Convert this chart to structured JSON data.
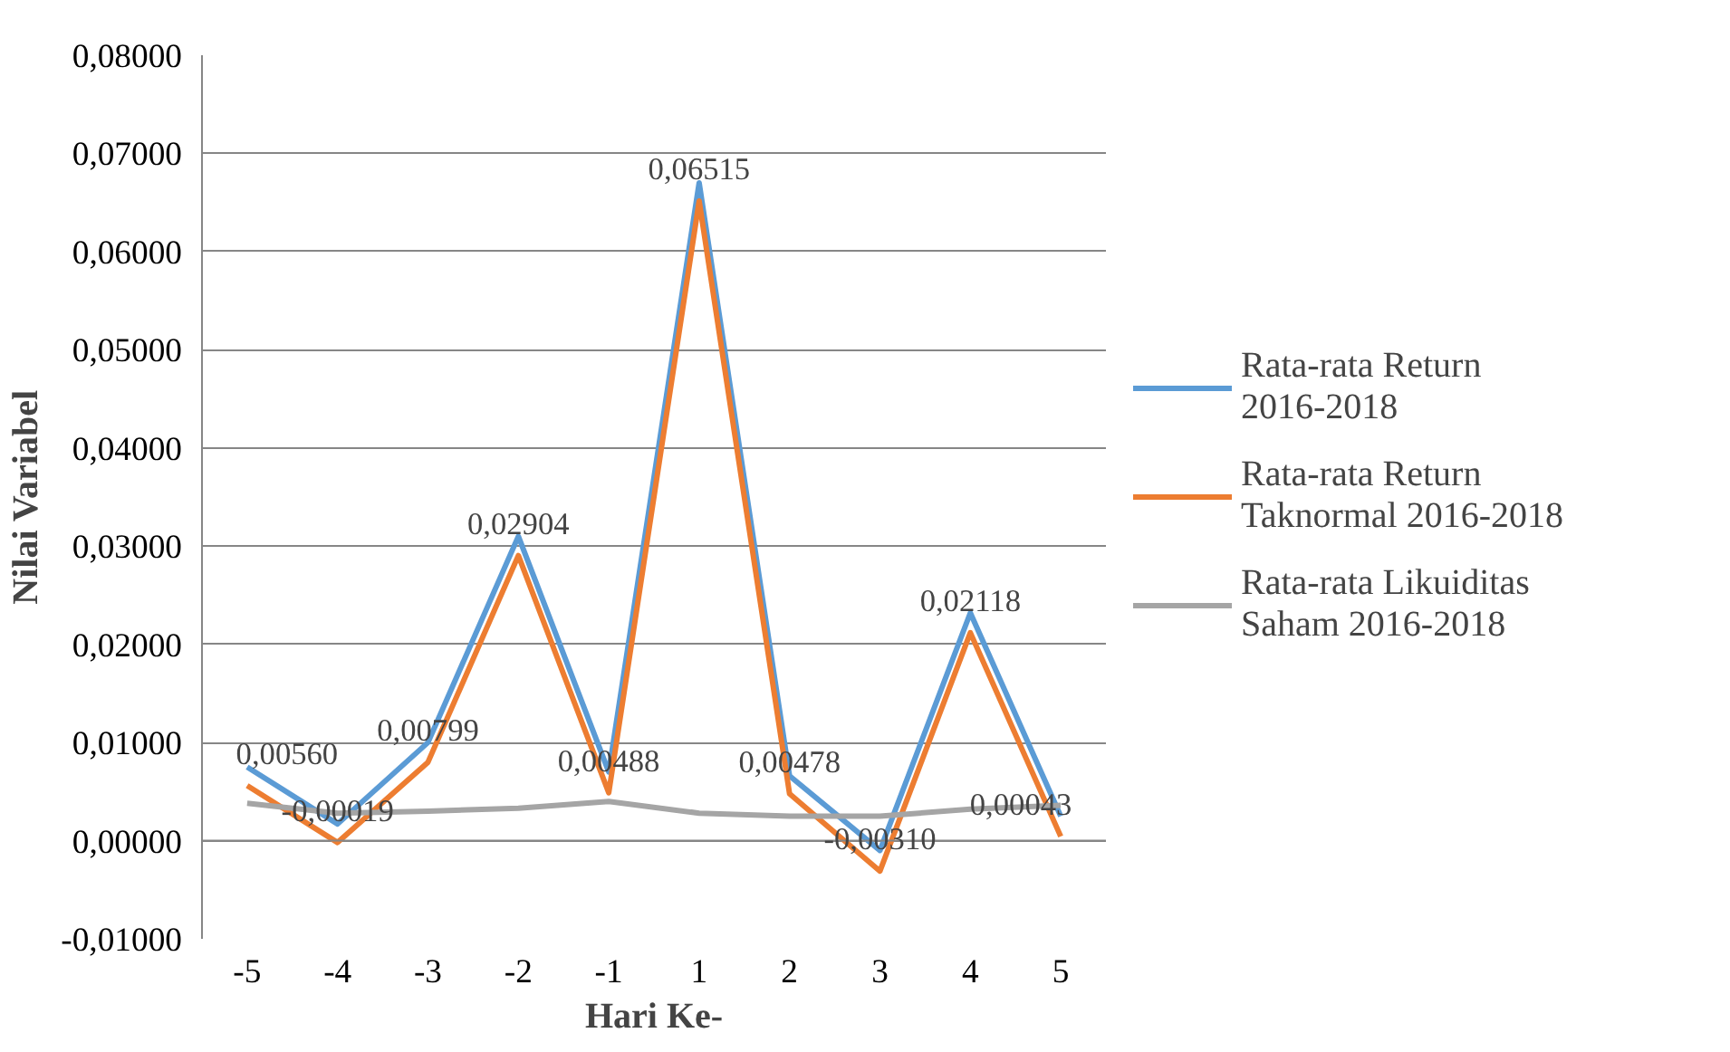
{
  "chart_data": {
    "type": "line",
    "xlabel": "Hari Ke-",
    "ylabel": "Nilai Variabel",
    "categories": [
      "-5",
      "-4",
      "-3",
      "-2",
      "-1",
      "1",
      "2",
      "3",
      "4",
      "5"
    ],
    "series": [
      {
        "name": "Rata-rata Return 2016-2018",
        "color": "#5b9bd5",
        "values": [
          0.0075,
          0.0017,
          0.01,
          0.031,
          0.007,
          0.067,
          0.0066,
          -0.001,
          0.0232,
          0.0025
        ]
      },
      {
        "name": "Rata-rata Return Taknormal 2016-2018",
        "color": "#ed7d31",
        "values": [
          0.0056,
          -0.00019,
          0.00799,
          0.02904,
          0.00488,
          0.06515,
          0.00478,
          -0.0031,
          0.02118,
          0.00043
        ],
        "value_labels": [
          "0,00560",
          "-0,00019",
          "0,00799",
          "0,02904",
          "0,00488",
          "0,06515",
          "0,00478",
          "-0,00310",
          "0,02118",
          "0,00043"
        ]
      },
      {
        "name": "Rata-rata Likuiditas Saham 2016-2018",
        "color": "#a5a5a5",
        "values": [
          0.0038,
          0.0028,
          0.003,
          0.0033,
          0.004,
          0.0028,
          0.0025,
          0.0025,
          0.0032,
          0.0036
        ]
      }
    ],
    "ylim": [
      -0.01,
      0.08
    ],
    "yticks": [
      {
        "value": -0.01,
        "label": "-0,01000"
      },
      {
        "value": 0,
        "label": "0,00000"
      },
      {
        "value": 0.01,
        "label": "0,01000"
      },
      {
        "value": 0.02,
        "label": "0,02000"
      },
      {
        "value": 0.03,
        "label": "0,03000"
      },
      {
        "value": 0.04,
        "label": "0,04000"
      },
      {
        "value": 0.05,
        "label": "0,05000"
      },
      {
        "value": 0.06,
        "label": "0,06000"
      },
      {
        "value": 0.07,
        "label": "0,07000"
      },
      {
        "value": 0.08,
        "label": "0,08000"
      }
    ],
    "grid": "y",
    "legend": "right",
    "marker": "none",
    "line_style": "solid"
  }
}
